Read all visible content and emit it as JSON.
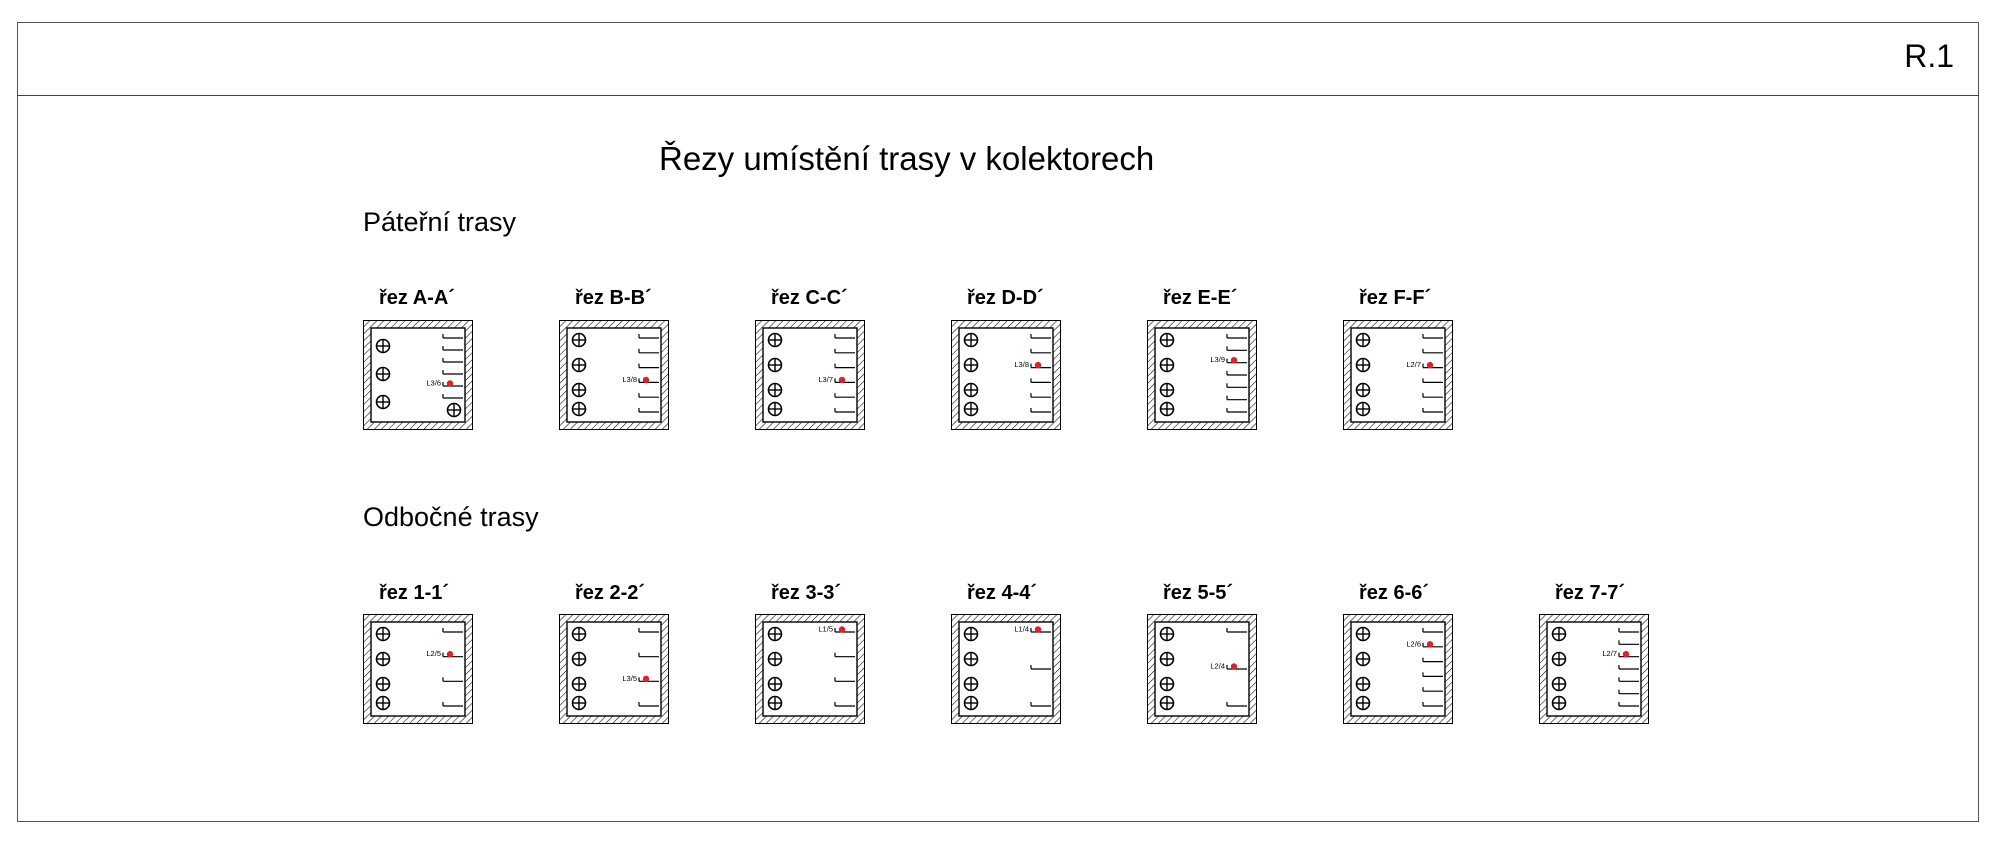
{
  "sheet_code": "R.1",
  "title": "Řezy umístění trasy v kolektorech",
  "sections": [
    {
      "heading": "Páteřní trasy",
      "cuts": [
        {
          "label": "řez A-A´",
          "pipes": "three-plus-corner",
          "shelves": 6,
          "marker_shelf": 2,
          "marker_text": "L3/6"
        },
        {
          "label": "řez B-B´",
          "pipes": "four",
          "shelves": 6,
          "marker_shelf": 3,
          "marker_text": "L3/8"
        },
        {
          "label": "řez C-C´",
          "pipes": "four",
          "shelves": 6,
          "marker_shelf": 3,
          "marker_text": "L3/7"
        },
        {
          "label": "řez D-D´",
          "pipes": "four",
          "shelves": 6,
          "marker_shelf": 4,
          "marker_text": "L3/8"
        },
        {
          "label": "řez E-E´",
          "pipes": "four",
          "shelves": 7,
          "marker_shelf": 5,
          "marker_text": "L3/9"
        },
        {
          "label": "řez F-F´",
          "pipes": "four",
          "shelves": 6,
          "marker_shelf": 4,
          "marker_text": "L2/7"
        }
      ]
    },
    {
      "heading": "Odbočné trasy",
      "cuts": [
        {
          "label": "řez 1-1´",
          "pipes": "four",
          "shelves": 4,
          "marker_shelf": 3,
          "marker_text": "L2/5"
        },
        {
          "label": "řez 2-2´",
          "pipes": "four",
          "shelves": 4,
          "marker_shelf": 2,
          "marker_text": "L3/5"
        },
        {
          "label": "řez 3-3´",
          "pipes": "four",
          "shelves": 4,
          "marker_shelf": 4,
          "marker_text": "L1/5"
        },
        {
          "label": "řez 4-4´",
          "pipes": "four",
          "shelves": 3,
          "marker_shelf": 3,
          "marker_text": "L1/4"
        },
        {
          "label": "řez 5-5´",
          "pipes": "four",
          "shelves": 3,
          "marker_shelf": 2,
          "marker_text": "L2/4"
        },
        {
          "label": "řez 6-6´",
          "pipes": "four",
          "shelves": 6,
          "marker_shelf": 5,
          "marker_text": "L2/6"
        },
        {
          "label": "řez 7-7´",
          "pipes": "four",
          "shelves": 7,
          "marker_shelf": 5,
          "marker_text": "L2/7"
        }
      ]
    }
  ],
  "colors": {
    "line": "#000000",
    "frame": "#555555",
    "marker": "#e0202a"
  }
}
